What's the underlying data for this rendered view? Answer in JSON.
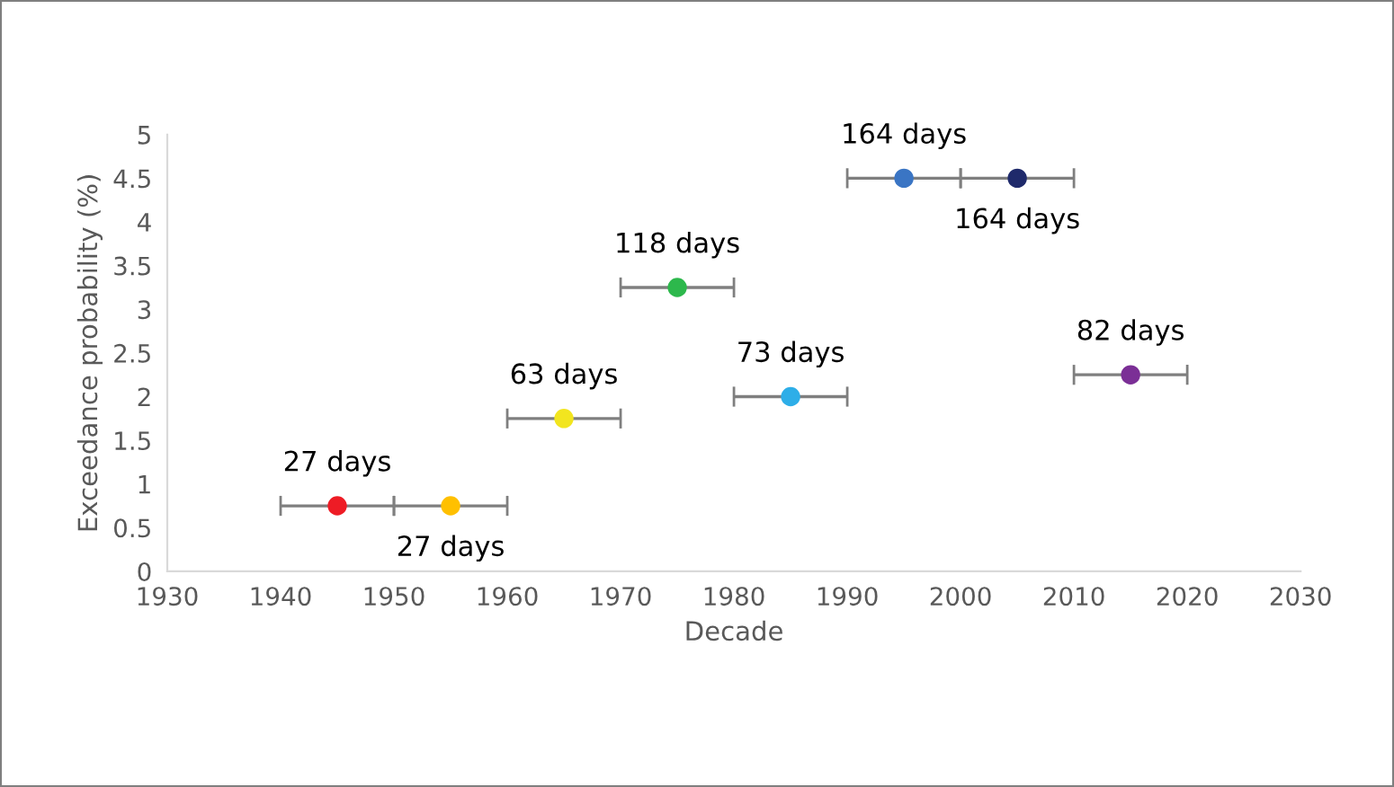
{
  "chart_data": {
    "type": "scatter",
    "xlabel": "Decade",
    "ylabel": "Exceedance probability (%)",
    "x": [
      1945,
      1955,
      1965,
      1975,
      1985,
      1995,
      2005,
      2015
    ],
    "values": [
      0.75,
      0.75,
      1.75,
      3.25,
      2.0,
      4.5,
      4.5,
      2.25
    ],
    "xerrors": [
      5,
      5,
      5,
      5,
      5,
      5,
      5,
      5
    ],
    "colors": [
      "#ee1c25",
      "#ffc000",
      "#f2e51f",
      "#2db84c",
      "#2eaee8",
      "#3a75c4",
      "#1f2a6b",
      "#7b2f96"
    ],
    "marker": "circle",
    "xlim": [
      1930,
      2030
    ],
    "xticks": [
      1930,
      1940,
      1950,
      1960,
      1970,
      1980,
      1990,
      2000,
      2010,
      2020,
      2030
    ],
    "ylim": [
      0,
      5
    ],
    "yticks": [
      0,
      0.5,
      1,
      1.5,
      2,
      2.5,
      3,
      3.5,
      4,
      4.5,
      5
    ],
    "grid": false,
    "annotations": [
      {
        "text": "27 days",
        "x": 1945,
        "y": 0.75
      },
      {
        "text": "27 days",
        "x": 1955,
        "y": 0.75
      },
      {
        "text": "63 days",
        "x": 1965,
        "y": 1.75
      },
      {
        "text": "118 days",
        "x": 1975,
        "y": 3.25
      },
      {
        "text": "73 days",
        "x": 1985,
        "y": 2.0
      },
      {
        "text": "164 days",
        "x": 1995,
        "y": 4.5
      },
      {
        "text": "164 days",
        "x": 2005,
        "y": 4.5
      },
      {
        "text": "82 days",
        "x": 2015,
        "y": 2.25
      }
    ]
  }
}
